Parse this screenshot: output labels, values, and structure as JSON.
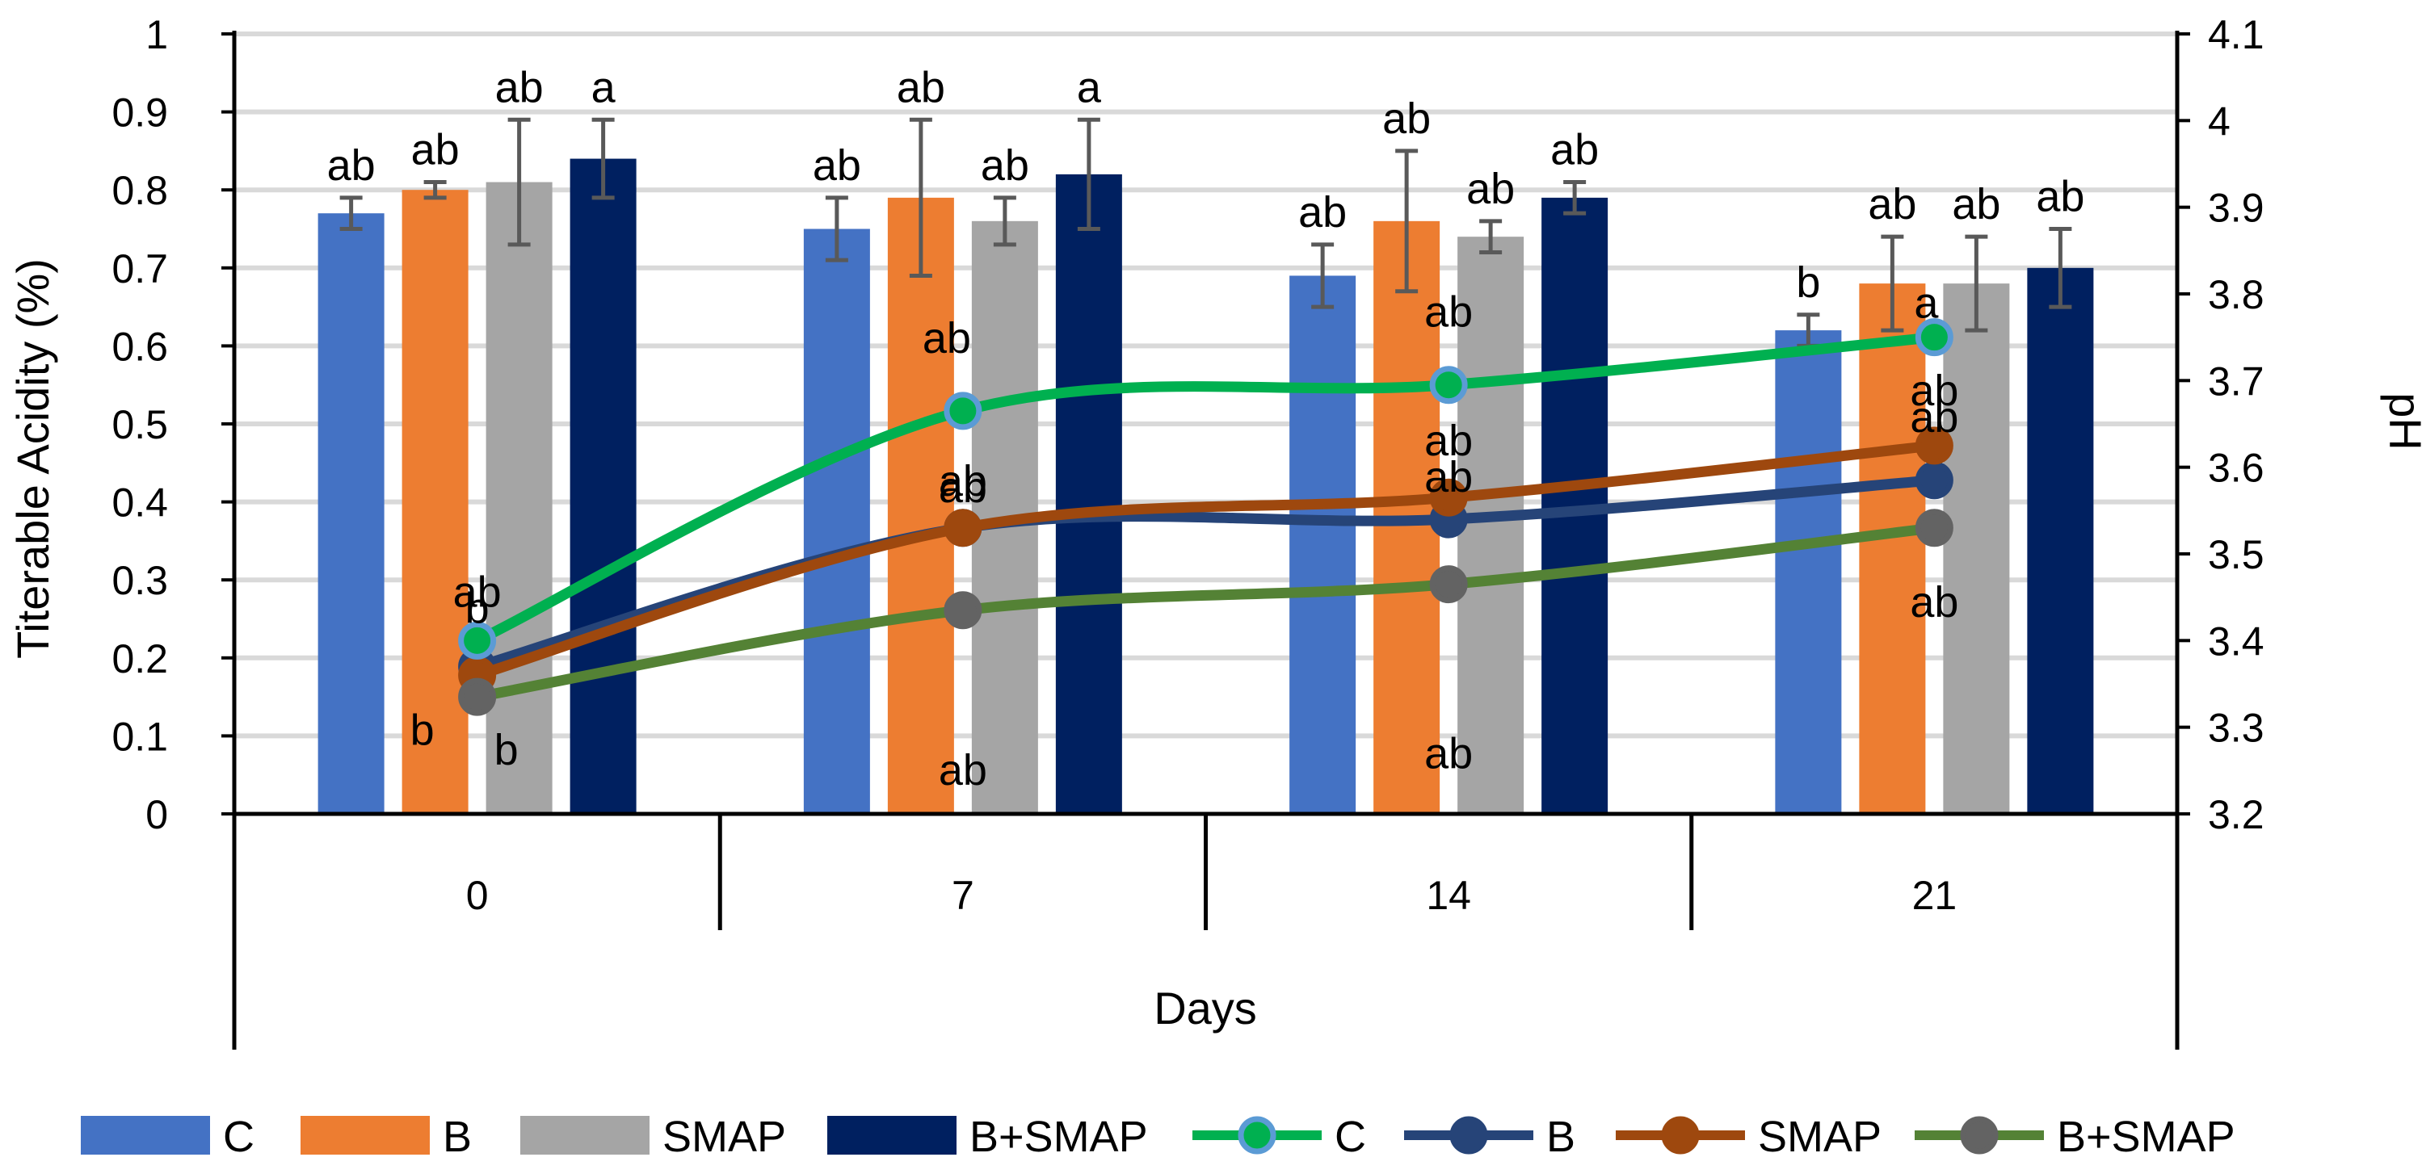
{
  "chart_data": {
    "type": "bar+line",
    "categories": [
      "0",
      "7",
      "14",
      "21"
    ],
    "xlabel": "Days",
    "ylabel": "Titerable Acidity (%)",
    "y2label": "pH",
    "ylim": [
      0,
      1
    ],
    "ystep": 0.1,
    "y2lim": [
      3.2,
      4.1
    ],
    "y2step": 0.1,
    "y_ticks": [
      "0",
      "0.1",
      "0.2",
      "0.3",
      "0.4",
      "0.5",
      "0.6",
      "0.7",
      "0.8",
      "0.9",
      "1"
    ],
    "y2_ticks": [
      "3.2",
      "3.3",
      "3.4",
      "3.5",
      "3.6",
      "3.7",
      "3.8",
      "3.9",
      "4",
      "4.1"
    ],
    "grid": true,
    "legend_position": "bottom",
    "bar_series": [
      {
        "name": "C",
        "color": "#4472c4",
        "values": [
          0.77,
          0.75,
          0.69,
          0.62
        ],
        "errors": [
          0.02,
          0.04,
          0.04,
          0.02
        ],
        "labels": [
          "ab",
          "ab",
          "ab",
          "b"
        ]
      },
      {
        "name": "B",
        "color": "#ed7d31",
        "values": [
          0.8,
          0.79,
          0.76,
          0.68
        ],
        "errors": [
          0.01,
          0.1,
          0.09,
          0.06
        ],
        "labels": [
          "ab",
          "ab",
          "ab",
          "ab"
        ]
      },
      {
        "name": "SMAP",
        "color": "#a5a5a5",
        "values": [
          0.81,
          0.76,
          0.74,
          0.68
        ],
        "errors": [
          0.08,
          0.03,
          0.02,
          0.06
        ],
        "labels": [
          "ab",
          "ab",
          "ab",
          "ab"
        ]
      },
      {
        "name": "B+SMAP",
        "color": "#002060",
        "values": [
          0.84,
          0.82,
          0.79,
          0.7
        ],
        "errors": [
          0.05,
          0.07,
          0.02,
          0.05
        ],
        "labels": [
          "a",
          "a",
          "ab",
          "ab"
        ]
      }
    ],
    "line_series": [
      {
        "name": "C",
        "color": "#00b050",
        "marker_edge": "#5b9bd5",
        "values": [
          3.4,
          3.665,
          3.695,
          3.75
        ],
        "labels": [
          "b",
          "ab",
          "ab",
          "a"
        ]
      },
      {
        "name": "B",
        "color": "#264478",
        "marker_edge": "#264478",
        "values": [
          3.37,
          3.53,
          3.54,
          3.585
        ],
        "labels": [
          "ab",
          "ab",
          "ab",
          "ab"
        ]
      },
      {
        "name": "SMAP",
        "color": "#9e480e",
        "marker_edge": "#9e480e",
        "values": [
          3.36,
          3.53,
          3.565,
          3.625
        ],
        "labels": [
          "b",
          "ab",
          "ab",
          "ab"
        ]
      },
      {
        "name": "B+SMAP",
        "color": "#548235",
        "marker_edge": "#636363",
        "marker_fill": "#636363",
        "values": [
          3.335,
          3.435,
          3.465,
          3.53
        ],
        "labels": [
          "b",
          "ab",
          "ab",
          "ab"
        ]
      }
    ]
  }
}
